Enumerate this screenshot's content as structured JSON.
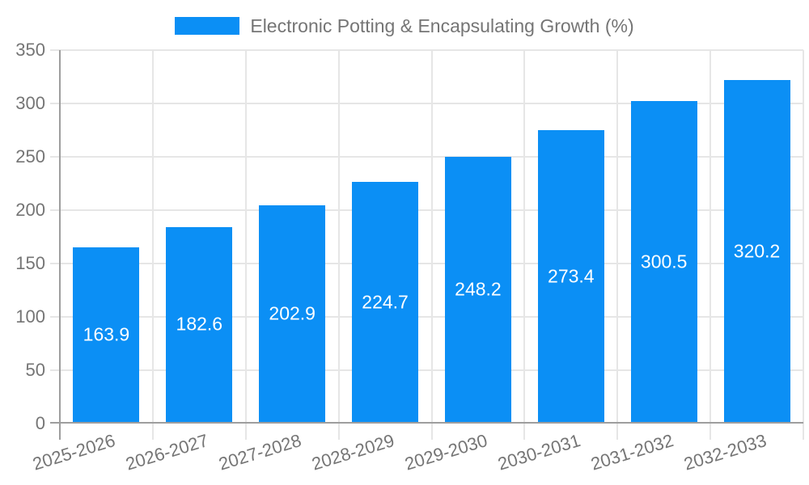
{
  "chart_data": {
    "type": "bar",
    "title": "Electronic Potting & Encapsulating Growth (%)",
    "categories": [
      "2025-2026",
      "2026-2027",
      "2027-2028",
      "2028-2029",
      "2029-2030",
      "2030-2031",
      "2031-2032",
      "2032-2033"
    ],
    "values": [
      163.9,
      182.6,
      202.9,
      224.7,
      248.2,
      273.4,
      300.5,
      320.2
    ],
    "value_labels": [
      "163.9",
      "182.6",
      "202.9",
      "224.7",
      "248.2",
      "273.4",
      "300.5",
      "320.2"
    ],
    "xlabel": "",
    "ylabel": "",
    "ylim": [
      0,
      350
    ],
    "yticks": [
      0,
      50,
      100,
      150,
      200,
      250,
      300,
      350
    ],
    "ytick_labels": [
      "0",
      "50",
      "100",
      "150",
      "200",
      "250",
      "300",
      "350"
    ],
    "grid": true,
    "legend_position": "top-center",
    "colors": {
      "bar": "#0b8ff5",
      "value_label": "#ffffff",
      "axis_line": "#9e9e9e",
      "gridline": "#e6e6e6",
      "tick_text": "#757575",
      "legend_text": "#757575",
      "background": "#ffffff"
    }
  }
}
